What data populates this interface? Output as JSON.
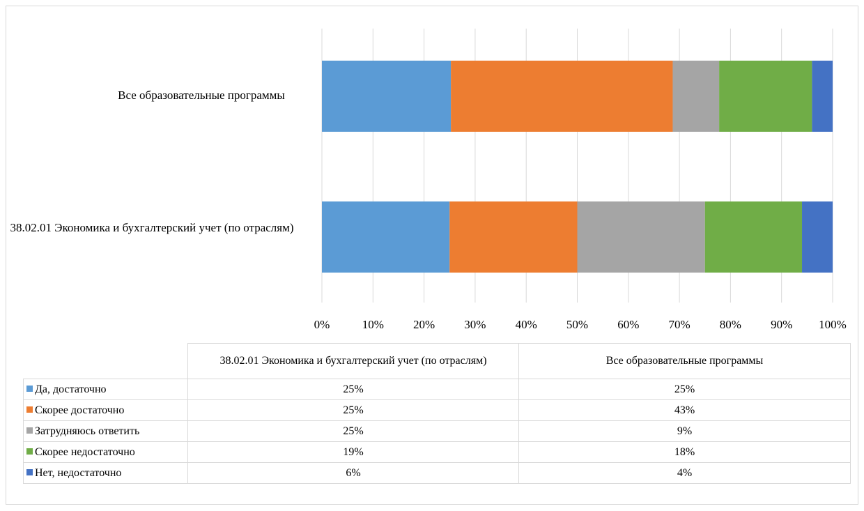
{
  "chart_data": {
    "type": "bar",
    "orientation": "horizontal",
    "stacked": "percent",
    "categories": [
      "38.02.01 Экономика и бухгалтерский учет (по отраслям)",
      "Все образовательные программы"
    ],
    "series": [
      {
        "name": "Да, достаточно",
        "color": "#5b9bd5",
        "values": [
          25,
          25
        ],
        "labels": [
          "25%",
          "25%"
        ]
      },
      {
        "name": "Скорее достаточно",
        "color": "#ed7d31",
        "values": [
          25,
          43
        ],
        "labels": [
          "25%",
          "43%"
        ]
      },
      {
        "name": "Затрудняюсь ответить",
        "color": "#a5a5a5",
        "values": [
          25,
          9
        ],
        "labels": [
          "25%",
          "9%"
        ]
      },
      {
        "name": "Скорее недостаточно",
        "color": "#70ad47",
        "values": [
          19,
          18
        ],
        "labels": [
          "19%",
          "18%"
        ]
      },
      {
        "name": "Нет, недостаточно",
        "color": "#4472c4",
        "values": [
          6,
          4
        ],
        "labels": [
          "6%",
          "4%"
        ]
      }
    ],
    "xlim": [
      0,
      100
    ],
    "x_ticks": [
      "0%",
      "10%",
      "20%",
      "30%",
      "40%",
      "50%",
      "60%",
      "70%",
      "80%",
      "90%",
      "100%"
    ],
    "grid": true,
    "legend": "data-table-below"
  }
}
